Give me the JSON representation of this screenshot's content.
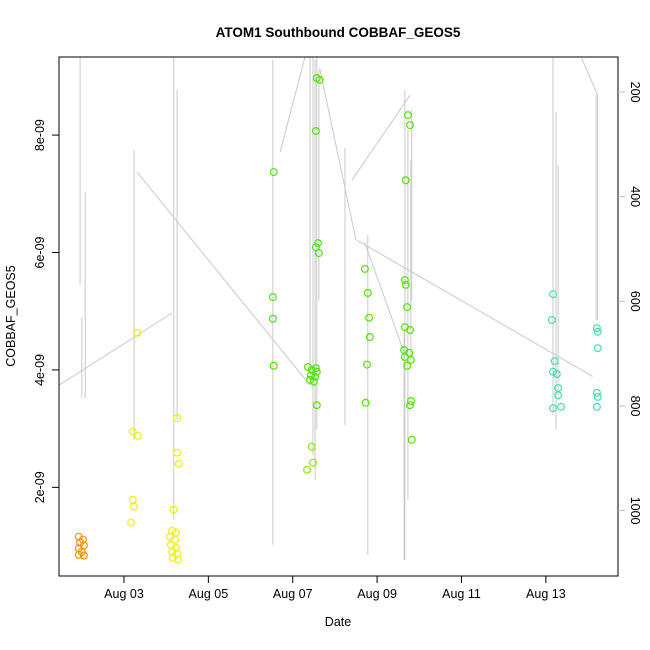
{
  "title": "ATOM1 Southbound COBBAF_GEOS5",
  "chart_data": {
    "type": "scatter",
    "title": "ATOM1 Southbound COBBAF_GEOS5",
    "xlabel": "Date",
    "ylabel": "COBBAF_GEOS5",
    "grid": "off",
    "legend": "none",
    "x_axis": {
      "label": "Date",
      "unit": "day of August",
      "lim": [
        1.46,
        14.71
      ],
      "ticks": [
        {
          "pos": 3,
          "label": "Aug 03"
        },
        {
          "pos": 5,
          "label": "Aug 05"
        },
        {
          "pos": 7,
          "label": "Aug 07"
        },
        {
          "pos": 9,
          "label": "Aug 09"
        },
        {
          "pos": 11,
          "label": "Aug 11"
        },
        {
          "pos": 13,
          "label": "Aug 13"
        }
      ]
    },
    "y_axis": {
      "label": "COBBAF_GEOS5",
      "unit": "1e-9",
      "lim": [
        0.49,
        9.33
      ],
      "ticks": [
        {
          "pos": 2,
          "label": "2e-09"
        },
        {
          "pos": 4,
          "label": "4e-09"
        },
        {
          "pos": 6,
          "label": "6e-09"
        },
        {
          "pos": 8,
          "label": "8e-09"
        }
      ]
    },
    "right_axis": {
      "lim": [
        133,
        1125
      ],
      "direction": "increases-downward",
      "text_color": "#BEBEBE",
      "ticks": [
        {
          "pos": 200,
          "label": "200"
        },
        {
          "pos": 400,
          "label": "400"
        },
        {
          "pos": 600,
          "label": "600"
        },
        {
          "pos": 800,
          "label": "800"
        },
        {
          "pos": 1000,
          "label": "1000"
        }
      ]
    },
    "colors": {
      "background": "#FFFFFF",
      "box": "#000000",
      "track_line": "#C9C9C9"
    },
    "series": [
      {
        "name": "cluster-orange",
        "color": "#FF8C00",
        "points": [
          [
            1.93,
            1.16
          ],
          [
            2.03,
            1.11
          ],
          [
            1.96,
            1.06
          ],
          [
            2.05,
            1.01
          ],
          [
            1.93,
            0.96
          ],
          [
            2.0,
            0.9
          ],
          [
            1.93,
            0.85
          ],
          [
            2.05,
            0.84
          ]
        ]
      },
      {
        "name": "cluster-yellow",
        "color": "#F0F000",
        "points": [
          [
            3.31,
            4.63
          ],
          [
            3.21,
            2.95
          ],
          [
            3.33,
            2.88
          ],
          [
            3.21,
            1.79
          ],
          [
            3.24,
            1.67
          ],
          [
            3.17,
            1.4
          ],
          [
            4.26,
            3.18
          ],
          [
            4.26,
            2.59
          ],
          [
            4.3,
            2.4
          ],
          [
            4.18,
            1.62
          ],
          [
            4.14,
            1.26
          ],
          [
            4.23,
            1.23
          ],
          [
            4.09,
            1.16
          ],
          [
            4.21,
            1.11
          ],
          [
            4.11,
            1.02
          ],
          [
            4.23,
            0.97
          ],
          [
            4.14,
            0.9
          ],
          [
            4.26,
            0.87
          ],
          [
            4.16,
            0.8
          ],
          [
            4.28,
            0.77
          ]
        ]
      },
      {
        "name": "cluster-yellow-green",
        "color": "#8EE800",
        "points": [
          [
            7.45,
            2.69
          ],
          [
            7.48,
            2.42
          ],
          [
            7.34,
            2.3
          ]
        ]
      },
      {
        "name": "cluster-green",
        "color": "#4CE600",
        "points": [
          [
            6.55,
            7.37
          ],
          [
            6.53,
            5.24
          ],
          [
            6.53,
            4.87
          ],
          [
            6.55,
            4.07
          ],
          [
            7.57,
            8.97
          ],
          [
            7.64,
            8.94
          ],
          [
            7.55,
            8.07
          ],
          [
            7.6,
            6.16
          ],
          [
            7.55,
            6.09
          ],
          [
            7.62,
            5.99
          ],
          [
            7.36,
            4.05
          ],
          [
            7.55,
            4.03
          ],
          [
            7.45,
            4.0
          ],
          [
            7.57,
            3.97
          ],
          [
            7.43,
            3.91
          ],
          [
            7.53,
            3.88
          ],
          [
            7.41,
            3.83
          ],
          [
            7.5,
            3.8
          ],
          [
            7.57,
            3.4
          ],
          [
            8.71,
            5.72
          ],
          [
            8.78,
            5.31
          ],
          [
            8.81,
            4.89
          ],
          [
            8.83,
            4.56
          ],
          [
            8.76,
            4.09
          ],
          [
            8.73,
            3.44
          ],
          [
            9.73,
            8.34
          ],
          [
            9.78,
            8.17
          ],
          [
            9.68,
            7.23
          ],
          [
            9.66,
            5.53
          ],
          [
            9.68,
            5.45
          ],
          [
            9.71,
            5.07
          ],
          [
            9.66,
            4.73
          ],
          [
            9.78,
            4.68
          ],
          [
            9.64,
            4.34
          ],
          [
            9.76,
            4.29
          ],
          [
            9.66,
            4.22
          ],
          [
            9.8,
            4.17
          ],
          [
            9.71,
            4.07
          ],
          [
            9.8,
            3.47
          ],
          [
            9.78,
            3.4
          ],
          [
            9.82,
            2.81
          ]
        ]
      },
      {
        "name": "cluster-spring-green",
        "color": "#3EE2A8",
        "points": [
          [
            13.17,
            5.29
          ],
          [
            13.14,
            4.85
          ],
          [
            13.21,
            4.15
          ],
          [
            13.17,
            3.97
          ],
          [
            13.26,
            3.93
          ],
          [
            13.29,
            3.69
          ],
          [
            13.29,
            3.57
          ],
          [
            13.36,
            3.37
          ],
          [
            13.17,
            3.35
          ],
          [
            14.21,
            4.71
          ],
          [
            14.23,
            4.65
          ],
          [
            14.23,
            4.37
          ],
          [
            14.21,
            3.61
          ],
          [
            14.23,
            3.54
          ],
          [
            14.21,
            3.37
          ]
        ]
      }
    ],
    "track_lines": {
      "color": "#C9C9C9",
      "segments": [
        [
          [
            1.96,
            9.33
          ],
          [
            1.96,
            5.45
          ]
        ],
        [
          [
            2.08,
            7.03
          ],
          [
            2.08,
            3.52
          ]
        ],
        [
          [
            2.0,
            4.89
          ],
          [
            2.0,
            3.52
          ]
        ],
        [
          [
            3.24,
            7.74
          ],
          [
            3.24,
            2.81
          ]
        ],
        [
          [
            4.18,
            9.33
          ],
          [
            4.18,
            1.45
          ]
        ],
        [
          [
            4.26,
            8.77
          ],
          [
            4.26,
            3.15
          ]
        ],
        [
          [
            6.53,
            9.28
          ],
          [
            6.53,
            1.02
          ]
        ],
        [
          [
            7.41,
            9.33
          ],
          [
            7.41,
            3.8
          ]
        ],
        [
          [
            7.48,
            9.33
          ],
          [
            7.48,
            2.55
          ]
        ],
        [
          [
            7.53,
            9.28
          ],
          [
            7.53,
            2.13
          ]
        ],
        [
          [
            7.57,
            9.33
          ],
          [
            7.57,
            2.98
          ]
        ],
        [
          [
            7.62,
            9.11
          ],
          [
            7.62,
            5.19
          ]
        ],
        [
          [
            8.24,
            7.78
          ],
          [
            8.24,
            3.06
          ]
        ],
        [
          [
            8.78,
            6.3
          ],
          [
            8.78,
            0.85
          ]
        ],
        [
          [
            9.66,
            8.77
          ],
          [
            9.66,
            0.76
          ]
        ],
        [
          [
            9.73,
            8.09
          ],
          [
            9.73,
            1.79
          ]
        ],
        [
          [
            9.8,
            7.57
          ],
          [
            9.8,
            4.17
          ]
        ],
        [
          [
            9.64,
            4.68
          ],
          [
            9.64,
            0.76
          ]
        ],
        [
          [
            9.82,
            8.43
          ],
          [
            9.82,
            5.19
          ]
        ],
        [
          [
            13.17,
            9.33
          ],
          [
            13.17,
            3.23
          ]
        ],
        [
          [
            13.24,
            8.39
          ],
          [
            13.24,
            2.98
          ]
        ],
        [
          [
            13.29,
            7.49
          ],
          [
            13.29,
            3.57
          ]
        ],
        [
          [
            14.19,
            8.68
          ],
          [
            14.19,
            4.85
          ]
        ],
        [
          [
            14.23,
            8.68
          ],
          [
            14.23,
            4.85
          ]
        ],
        [
          [
            1.46,
            3.74
          ],
          [
            4.14,
            4.97
          ]
        ],
        [
          [
            3.31,
            7.37
          ],
          [
            7.41,
            3.74
          ]
        ],
        [
          [
            6.7,
            7.71
          ],
          [
            7.29,
            9.33
          ]
        ],
        [
          [
            7.64,
            9.14
          ],
          [
            8.5,
            6.21
          ]
        ],
        [
          [
            8.52,
            6.21
          ],
          [
            14.11,
            3.89
          ]
        ],
        [
          [
            8.71,
            6.16
          ],
          [
            9.66,
            4.26
          ]
        ],
        [
          [
            9.78,
            8.68
          ],
          [
            8.4,
            7.23
          ]
        ],
        [
          [
            13.85,
            9.31
          ],
          [
            14.23,
            8.68
          ]
        ]
      ]
    }
  }
}
